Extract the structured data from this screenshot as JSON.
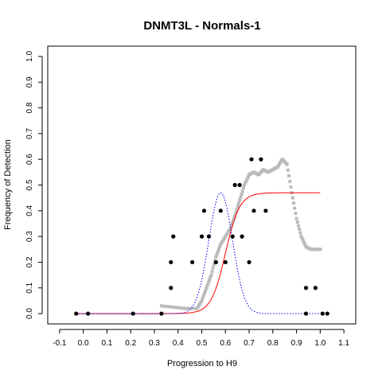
{
  "chart_data": {
    "type": "scatter",
    "title": "DNMT3L - Normals-1",
    "xlabel": "Progression to H9",
    "ylabel": "Frequency of Detection",
    "xlim": [
      -0.15,
      1.15
    ],
    "ylim": [
      -0.04,
      1.04
    ],
    "x_ticks": [
      "-0.1",
      "0.0",
      "0.1",
      "0.2",
      "0.3",
      "0.4",
      "0.5",
      "0.6",
      "0.7",
      "0.8",
      "0.9",
      "1.0",
      "1.1"
    ],
    "x_tick_values": [
      -0.1,
      0.0,
      0.1,
      0.2,
      0.3,
      0.4,
      0.5,
      0.6,
      0.7,
      0.8,
      0.9,
      1.0,
      1.1
    ],
    "y_ticks": [
      "0.0",
      "0.1",
      "0.2",
      "0.3",
      "0.4",
      "0.5",
      "0.6",
      "0.7",
      "0.8",
      "0.9",
      "1.0"
    ],
    "y_tick_values": [
      0.0,
      0.1,
      0.2,
      0.3,
      0.4,
      0.5,
      0.6,
      0.7,
      0.8,
      0.9,
      1.0
    ],
    "grid": false,
    "series": [
      {
        "kind": "points",
        "color": "#000000",
        "points": [
          {
            "x": -0.03,
            "y": 0.0
          },
          {
            "x": 0.02,
            "y": 0.0
          },
          {
            "x": 0.21,
            "y": 0.0
          },
          {
            "x": 0.33,
            "y": 0.0
          },
          {
            "x": 0.37,
            "y": 0.1
          },
          {
            "x": 0.37,
            "y": 0.2
          },
          {
            "x": 0.38,
            "y": 0.3
          },
          {
            "x": 0.46,
            "y": 0.2
          },
          {
            "x": 0.5,
            "y": 0.3
          },
          {
            "x": 0.51,
            "y": 0.4
          },
          {
            "x": 0.53,
            "y": 0.3
          },
          {
            "x": 0.56,
            "y": 0.2
          },
          {
            "x": 0.58,
            "y": 0.4
          },
          {
            "x": 0.6,
            "y": 0.2
          },
          {
            "x": 0.63,
            "y": 0.3
          },
          {
            "x": 0.64,
            "y": 0.5
          },
          {
            "x": 0.66,
            "y": 0.5
          },
          {
            "x": 0.67,
            "y": 0.3
          },
          {
            "x": 0.7,
            "y": 0.2
          },
          {
            "x": 0.71,
            "y": 0.6
          },
          {
            "x": 0.72,
            "y": 0.4
          },
          {
            "x": 0.75,
            "y": 0.6
          },
          {
            "x": 0.77,
            "y": 0.4
          },
          {
            "x": 0.94,
            "y": 0.0
          },
          {
            "x": 0.94,
            "y": 0.1
          },
          {
            "x": 0.98,
            "y": 0.1
          },
          {
            "x": 1.01,
            "y": 0.0
          },
          {
            "x": 1.03,
            "y": 0.0
          }
        ]
      },
      {
        "kind": "smoothed-points",
        "color": "#bbbbbb",
        "points": [
          {
            "x": 0.33,
            "y": 0.03
          },
          {
            "x": 0.38,
            "y": 0.025
          },
          {
            "x": 0.43,
            "y": 0.02
          },
          {
            "x": 0.48,
            "y": 0.02
          },
          {
            "x": 0.5,
            "y": 0.05
          },
          {
            "x": 0.52,
            "y": 0.1
          },
          {
            "x": 0.54,
            "y": 0.15
          },
          {
            "x": 0.56,
            "y": 0.22
          },
          {
            "x": 0.58,
            "y": 0.27
          },
          {
            "x": 0.6,
            "y": 0.3
          },
          {
            "x": 0.62,
            "y": 0.33
          },
          {
            "x": 0.64,
            "y": 0.38
          },
          {
            "x": 0.66,
            "y": 0.44
          },
          {
            "x": 0.68,
            "y": 0.5
          },
          {
            "x": 0.7,
            "y": 0.54
          },
          {
            "x": 0.72,
            "y": 0.55
          },
          {
            "x": 0.74,
            "y": 0.54
          },
          {
            "x": 0.76,
            "y": 0.56
          },
          {
            "x": 0.78,
            "y": 0.55
          },
          {
            "x": 0.8,
            "y": 0.56
          },
          {
            "x": 0.82,
            "y": 0.57
          },
          {
            "x": 0.84,
            "y": 0.6
          },
          {
            "x": 0.86,
            "y": 0.58
          },
          {
            "x": 0.88,
            "y": 0.47
          },
          {
            "x": 0.9,
            "y": 0.37
          },
          {
            "x": 0.92,
            "y": 0.3
          },
          {
            "x": 0.94,
            "y": 0.26
          },
          {
            "x": 0.96,
            "y": 0.25
          },
          {
            "x": 0.98,
            "y": 0.25
          },
          {
            "x": 1.0,
            "y": 0.25
          }
        ]
      },
      {
        "kind": "sigmoid-line",
        "color": "#ff0000",
        "x_range": [
          -0.03,
          1.0
        ],
        "max": 0.47,
        "midpoint": 0.6,
        "scale": 0.03
      },
      {
        "kind": "gaussian-dotted-line",
        "color": "#0000ff",
        "x_range": [
          -0.03,
          1.0
        ],
        "peak": 0.47,
        "mean": 0.58,
        "sd": 0.05
      }
    ]
  }
}
